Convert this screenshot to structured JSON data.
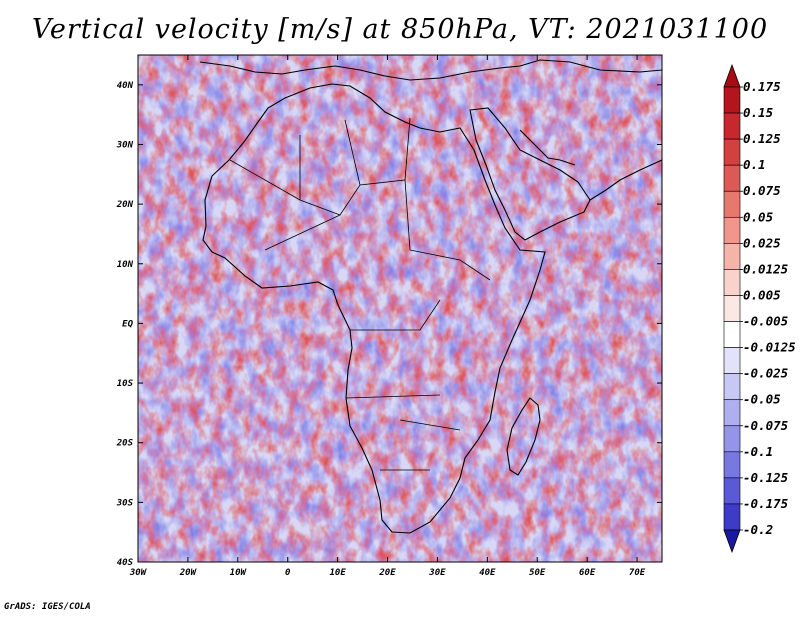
{
  "title": "Vertical velocity [m/s] at 850hPa, VT: 2021031100",
  "credit": "GrADS: IGES/COLA",
  "map": {
    "lon_range": [
      -30,
      75
    ],
    "lat_range": [
      -40,
      45
    ],
    "lat_ticks": [
      {
        "value": 40,
        "label": "40N"
      },
      {
        "value": 30,
        "label": "30N"
      },
      {
        "value": 20,
        "label": "20N"
      },
      {
        "value": 10,
        "label": "10N"
      },
      {
        "value": 0,
        "label": "EQ"
      },
      {
        "value": -10,
        "label": "10S"
      },
      {
        "value": -20,
        "label": "20S"
      },
      {
        "value": -30,
        "label": "30S"
      },
      {
        "value": -40,
        "label": "40S"
      }
    ],
    "lon_ticks": [
      {
        "value": -30,
        "label": "30W"
      },
      {
        "value": -20,
        "label": "20W"
      },
      {
        "value": -10,
        "label": "10W"
      },
      {
        "value": 0,
        "label": "0"
      },
      {
        "value": 10,
        "label": "10E"
      },
      {
        "value": 20,
        "label": "20E"
      },
      {
        "value": 30,
        "label": "30E"
      },
      {
        "value": 40,
        "label": "40E"
      },
      {
        "value": 50,
        "label": "50E"
      },
      {
        "value": 60,
        "label": "60E"
      },
      {
        "value": 70,
        "label": "70E"
      }
    ]
  },
  "colorbar": {
    "levels": [
      {
        "label": "0.175",
        "color": "#b4141e"
      },
      {
        "label": "0.15",
        "color": "#c8282d"
      },
      {
        "label": "0.125",
        "color": "#d2413f"
      },
      {
        "label": "0.1",
        "color": "#dc5a55"
      },
      {
        "label": "0.075",
        "color": "#e6786e"
      },
      {
        "label": "0.05",
        "color": "#f0968c"
      },
      {
        "label": "0.025",
        "color": "#f5b4aa"
      },
      {
        "label": "0.0125",
        "color": "#f8d2cb"
      },
      {
        "label": "0.005",
        "color": "#fbe8e4"
      },
      {
        "label": "-0.005",
        "color": "#ffffff"
      },
      {
        "label": "-0.0125",
        "color": "#e2e2fa"
      },
      {
        "label": "-0.025",
        "color": "#c8c8f5"
      },
      {
        "label": "-0.05",
        "color": "#aeaef0"
      },
      {
        "label": "-0.075",
        "color": "#9494eb"
      },
      {
        "label": "-0.1",
        "color": "#7878e1"
      },
      {
        "label": "-0.125",
        "color": "#5a5ad7"
      },
      {
        "label": "-0.175",
        "color": "#3c3cc8"
      },
      {
        "label": "-0.2",
        "color": "#2020b4"
      }
    ],
    "top_color": "#aa0a14",
    "bottom_color": "#1a1aa0"
  }
}
